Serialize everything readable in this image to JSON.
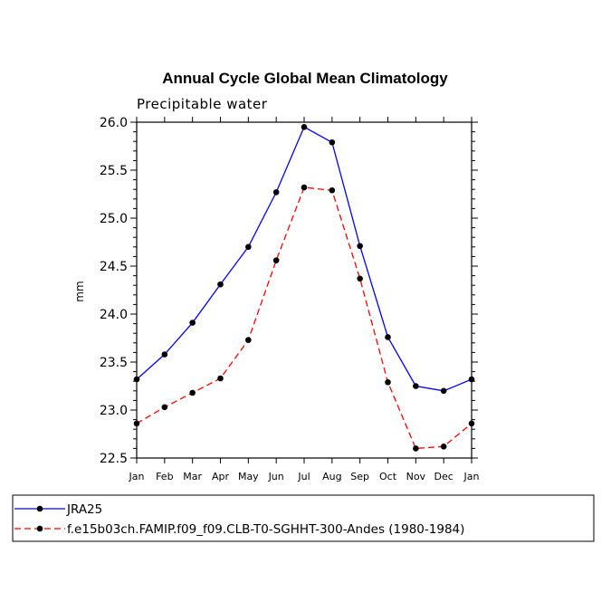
{
  "chart_data": {
    "type": "line",
    "title": "Annual Cycle Global Mean Climatology",
    "subtitle": "Precipitable water",
    "xlabel": "",
    "ylabel": "mm",
    "categories": [
      "Jan",
      "Feb",
      "Mar",
      "Apr",
      "May",
      "Jun",
      "Jul",
      "Aug",
      "Sep",
      "Oct",
      "Nov",
      "Dec",
      "Jan"
    ],
    "ylim": [
      22.5,
      26.0
    ],
    "yticks": [
      "22.5",
      "23.0",
      "23.5",
      "24.0",
      "24.5",
      "25.0",
      "25.5",
      "26.0"
    ],
    "ytick_values": [
      22.5,
      23.0,
      23.5,
      24.0,
      24.5,
      25.0,
      25.5,
      26.0
    ],
    "grid": false,
    "legend_position": "bottom",
    "series": [
      {
        "name": "JRA25",
        "color": "#0000ff",
        "dash": "solid",
        "values": [
          23.32,
          23.58,
          23.91,
          24.31,
          24.7,
          25.27,
          25.95,
          25.79,
          24.71,
          23.76,
          23.25,
          23.2,
          23.32
        ]
      },
      {
        "name": "f.e15b03ch.FAMIP.f09_f09.CLB-T0-SGHHT-300-Andes (1980-1984)",
        "color": "#ff0000",
        "dash": "dashed",
        "values": [
          22.86,
          23.03,
          23.18,
          23.33,
          23.73,
          24.56,
          25.32,
          25.29,
          24.37,
          23.29,
          22.6,
          22.62,
          22.86
        ]
      }
    ]
  }
}
